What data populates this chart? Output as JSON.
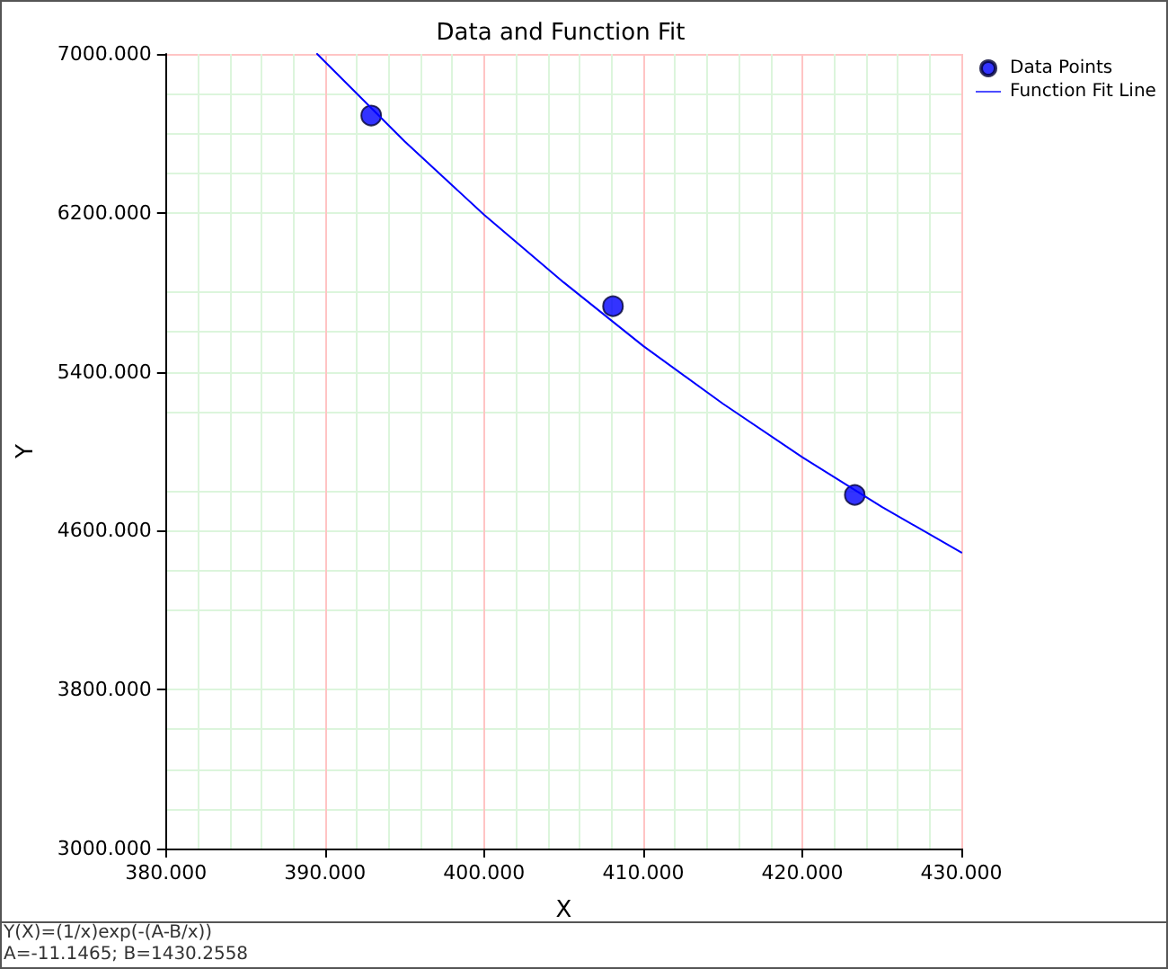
{
  "chart_data": {
    "type": "scatter",
    "title": "Data and Function Fit",
    "xlabel": "X",
    "ylabel": "Y",
    "annotations": [
      "Y(X)=(1/x)exp(-(A-B/x))",
      "A=-11.1465; B=1430.2558"
    ],
    "series": [
      {
        "name": "Data Points",
        "color": "#0000ff",
        "marker": "circle",
        "x": [
          392.9,
          408.1,
          423.3
        ],
        "values": [
          6690,
          5730,
          4780
        ]
      },
      {
        "name": "Function Fit Line",
        "type": "line",
        "color": "#0000ff",
        "marker": "none",
        "line_style": "solid",
        "x": [
          389.5,
          395,
          400,
          405,
          410,
          415,
          420,
          425,
          430
        ],
        "values": [
          7000,
          6560,
          6190,
          5850,
          5530,
          5240,
          4970,
          4720,
          4490
        ]
      }
    ],
    "xlim": [
      380,
      430
    ],
    "xticks": [
      {
        "value": 380,
        "label": "380.000"
      },
      {
        "value": 390,
        "label": "390.000"
      },
      {
        "value": 400,
        "label": "400.000"
      },
      {
        "value": 410,
        "label": "410.000"
      },
      {
        "value": 420,
        "label": "420.000"
      },
      {
        "value": 430,
        "label": "430.000"
      }
    ],
    "ylim": [
      3000,
      7000
    ],
    "yticks": [
      {
        "value": 3000,
        "label": "3000.000"
      },
      {
        "value": 3800,
        "label": "3800.000"
      },
      {
        "value": 4600,
        "label": "4600.000"
      },
      {
        "value": 5400,
        "label": "5400.000"
      },
      {
        "value": 6200,
        "label": "6200.000"
      },
      {
        "value": 7000,
        "label": "7000.000"
      }
    ],
    "grid": true,
    "legend": "top right"
  }
}
